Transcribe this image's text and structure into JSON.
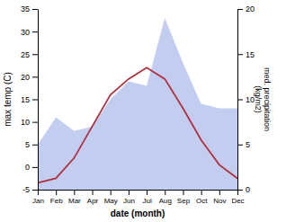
{
  "chart_data": {
    "type": "line",
    "categories": [
      "Jan",
      "Feb",
      "Mar",
      "Apr",
      "May",
      "Jun",
      "Jul",
      "Aug",
      "Sep",
      "Oct",
      "Nov",
      "Dec"
    ],
    "series": [
      {
        "type": "area",
        "axis": "y2",
        "color": "#bbc8ee",
        "values": [
          5.0,
          8.0,
          6.5,
          7.0,
          10.0,
          12.0,
          11.5,
          19.0,
          14.0,
          9.5,
          9.0,
          9.0
        ]
      },
      {
        "type": "line",
        "color": "#b03040",
        "values": [
          -3.5,
          -2.5,
          2.0,
          9.0,
          16.0,
          19.5,
          22.0,
          19.5,
          13.0,
          6.0,
          0.5,
          -2.5
        ]
      }
    ],
    "xlabel": "date (month)",
    "ylabel": "max temp (C)",
    "y2label": "med. precipitation\n(kg/m2)",
    "ylim": [
      -5,
      35
    ],
    "yticks": [
      -5,
      0,
      5,
      10,
      15,
      20,
      25,
      30,
      35
    ],
    "y2lim": [
      0,
      20
    ],
    "y2ticks": [
      0,
      5,
      10,
      15,
      20
    ],
    "grid": false
  }
}
